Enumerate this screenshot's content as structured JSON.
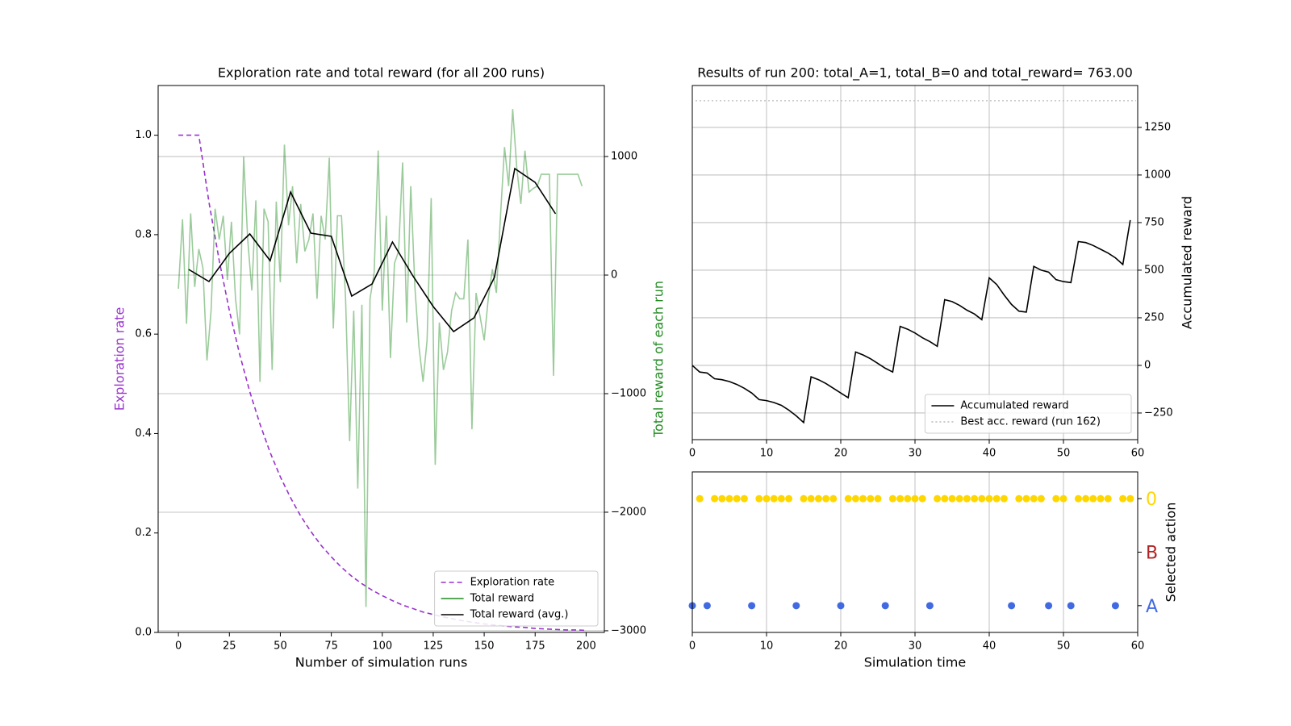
{
  "chart_data": [
    {
      "type": "line",
      "title": "Exploration rate and total reward (for all 200 runs)",
      "xlabel": "Number of simulation runs",
      "ylabel": "Exploration rate",
      "ylabel_color": "#9932cc",
      "y2label": "Total reward of each run",
      "y2label_color": "#228b22",
      "xlim": [
        -9.95,
        208.95
      ],
      "xticks": [
        0,
        25,
        50,
        75,
        100,
        125,
        150,
        175,
        200
      ],
      "ylim": [
        0,
        1.1
      ],
      "yticks": [
        {
          "value": 0,
          "label": "0.0"
        },
        {
          "value": 0.2,
          "label": "0.2"
        },
        {
          "value": 0.4,
          "label": "0.4"
        },
        {
          "value": 0.6,
          "label": "0.6"
        },
        {
          "value": 0.8,
          "label": "0.8"
        },
        {
          "value": 1,
          "label": "1.0"
        }
      ],
      "y2lim": [
        -3014,
        1599
      ],
      "y2ticks": [
        {
          "value": -3000,
          "label": "−3000"
        },
        {
          "value": -2000,
          "label": "−2000"
        },
        {
          "value": -1000,
          "label": "−1000"
        },
        0,
        1000
      ],
      "grid": "y2",
      "legend": "lower right",
      "series": [
        {
          "name": "Exploration rate",
          "color": "#9932cc",
          "dash": "6,4",
          "x": [
            0,
            5,
            10,
            15,
            20,
            25,
            30,
            35,
            40,
            45,
            50,
            55,
            60,
            65,
            70,
            75,
            80,
            85,
            90,
            95,
            100,
            105,
            110,
            115,
            120,
            125,
            130,
            135,
            140,
            145,
            150,
            155,
            160,
            165,
            170,
            175,
            180,
            185,
            190,
            195,
            200
          ],
          "values": [
            1,
            1,
            1,
            0.865,
            0.748,
            0.647,
            0.56,
            0.484,
            0.419,
            0.362,
            0.313,
            0.271,
            0.234,
            0.203,
            0.175,
            0.152,
            0.131,
            0.113,
            0.098,
            0.085,
            0.074,
            0.064,
            0.055,
            0.048,
            0.041,
            0.036,
            0.031,
            0.027,
            0.023,
            0.02,
            0.017,
            0.015,
            0.013,
            0.011,
            0.01,
            0.008,
            0.007,
            0.006,
            0.005,
            0.005,
            0.004
          ]
        },
        {
          "name": "Total reward",
          "color": "#228b22",
          "opacity": 0.45,
          "axis": "y2",
          "x": [
            0,
            2,
            4,
            6,
            8,
            10,
            12,
            14,
            16,
            18,
            20,
            22,
            24,
            26,
            28,
            30,
            32,
            34,
            36,
            38,
            40,
            42,
            44,
            46,
            48,
            50,
            52,
            54,
            56,
            58,
            60,
            62,
            64,
            66,
            68,
            70,
            72,
            74,
            76,
            78,
            80,
            82,
            84,
            86,
            88,
            90,
            92,
            94,
            96,
            98,
            100,
            102,
            104,
            106,
            108,
            110,
            112,
            114,
            116,
            118,
            120,
            122,
            124,
            126,
            128,
            130,
            132,
            134,
            136,
            138,
            140,
            142,
            144,
            146,
            148,
            150,
            152,
            154,
            156,
            158,
            160,
            162,
            164,
            166,
            168,
            170,
            172,
            174,
            176,
            178,
            180,
            182,
            184,
            186,
            188,
            190,
            192,
            194,
            196,
            198
          ],
          "values": [
            -115,
            470,
            -410,
            520,
            -100,
            220,
            60,
            -720,
            -300,
            560,
            300,
            500,
            -40,
            450,
            -200,
            -500,
            1000,
            300,
            -130,
            630,
            -900,
            560,
            450,
            -800,
            620,
            -60,
            1100,
            420,
            750,
            100,
            600,
            200,
            300,
            520,
            -200,
            500,
            300,
            990,
            -450,
            500,
            500,
            -200,
            -1400,
            -300,
            -1800,
            -250,
            -2800,
            -200,
            20,
            1050,
            -300,
            500,
            -700,
            100,
            200,
            950,
            -400,
            750,
            -100,
            -600,
            -900,
            -550,
            650,
            -1600,
            -400,
            -800,
            -650,
            -300,
            -150,
            -200,
            -200,
            300,
            -1300,
            -150,
            -350,
            -550,
            -200,
            50,
            -150,
            500,
            1080,
            750,
            1400,
            900,
            600,
            1050,
            700,
            730,
            750,
            850,
            850,
            850,
            -850,
            850,
            850,
            850,
            850,
            850,
            850,
            750
          ]
        },
        {
          "name": "Total reward (avg.)",
          "color": "#000000",
          "axis": "y2",
          "x": [
            5,
            15,
            25,
            35,
            45,
            55,
            65,
            75,
            85,
            95,
            105,
            115,
            125,
            135,
            145,
            155,
            165,
            175,
            185
          ],
          "values": [
            48,
            -54,
            184,
            347,
            122,
            700,
            354,
            327,
            -177,
            -75,
            279,
            -7,
            -265,
            -476,
            -361,
            -20,
            898,
            782,
            517
          ]
        }
      ]
    },
    {
      "type": "line",
      "title": "Results of run 200: total_A=1, total_B=0 and total_reward= 763.00",
      "ylabel": "Accumulated reward",
      "yside": "right",
      "xlim": [
        0,
        60
      ],
      "xticks": [
        0,
        10,
        20,
        30,
        40,
        50,
        60
      ],
      "ylim": [
        -390,
        1470
      ],
      "yticks": [
        {
          "value": -250,
          "label": "−250"
        },
        0,
        250,
        500,
        750,
        1000,
        1250
      ],
      "grid": "both",
      "legend": "lower right",
      "series": [
        {
          "name": "Accumulated reward",
          "color": "#000000",
          "x": [
            0,
            1,
            2,
            3,
            4,
            5,
            6,
            7,
            8,
            9,
            10,
            11,
            12,
            13,
            14,
            15,
            16,
            17,
            18,
            19,
            20,
            21,
            22,
            23,
            24,
            25,
            26,
            27,
            28,
            29,
            30,
            31,
            32,
            33,
            34,
            35,
            36,
            37,
            38,
            39,
            40,
            41,
            42,
            43,
            44,
            45,
            46,
            47,
            48,
            49,
            50,
            51,
            52,
            53,
            54,
            55,
            56,
            57,
            58,
            59
          ],
          "values": [
            0,
            -35,
            -40,
            -70,
            -75,
            -85,
            -100,
            -120,
            -145,
            -180,
            -185,
            -195,
            -210,
            -235,
            -265,
            -300,
            -60,
            -75,
            -95,
            -120,
            -145,
            -170,
            70,
            55,
            35,
            10,
            -15,
            -35,
            205,
            190,
            170,
            145,
            125,
            100,
            345,
            335,
            315,
            290,
            270,
            240,
            460,
            425,
            370,
            320,
            285,
            280,
            520,
            500,
            490,
            450,
            440,
            435,
            650,
            645,
            630,
            610,
            590,
            565,
            530,
            763
          ]
        },
        {
          "name": "Best acc. reward (run 162)",
          "color": "#bbbbbb",
          "dash": "2,3",
          "y": 1390
        }
      ]
    },
    {
      "type": "scatter",
      "xlabel": "Simulation time",
      "ylabel": "Selected action",
      "yside": "right",
      "xlim": [
        0,
        60
      ],
      "xticks": [
        0,
        10,
        20,
        30,
        40,
        50,
        60
      ],
      "ylim": [
        -0.5,
        2.5
      ],
      "categories": [
        "A",
        "B",
        "0"
      ],
      "category_colors": [
        "#4169e1",
        "#b22222",
        "#ffd700"
      ],
      "grid": "x",
      "x": [
        0,
        1,
        2,
        3,
        4,
        5,
        6,
        7,
        8,
        9,
        10,
        11,
        12,
        13,
        14,
        15,
        16,
        17,
        18,
        19,
        20,
        21,
        22,
        23,
        24,
        25,
        26,
        27,
        28,
        29,
        30,
        31,
        32,
        33,
        34,
        35,
        36,
        37,
        38,
        39,
        40,
        41,
        42,
        43,
        44,
        45,
        46,
        47,
        48,
        49,
        50,
        51,
        52,
        53,
        54,
        55,
        56,
        57,
        58,
        59
      ],
      "values": [
        0,
        2,
        0,
        2,
        2,
        2,
        2,
        2,
        0,
        2,
        2,
        2,
        2,
        2,
        0,
        2,
        2,
        2,
        2,
        2,
        0,
        2,
        2,
        2,
        2,
        2,
        0,
        2,
        2,
        2,
        2,
        2,
        0,
        2,
        2,
        2,
        2,
        2,
        2,
        2,
        2,
        2,
        2,
        0,
        2,
        2,
        2,
        2,
        0,
        2,
        2,
        0,
        2,
        2,
        2,
        2,
        2,
        0,
        2,
        2
      ]
    }
  ]
}
